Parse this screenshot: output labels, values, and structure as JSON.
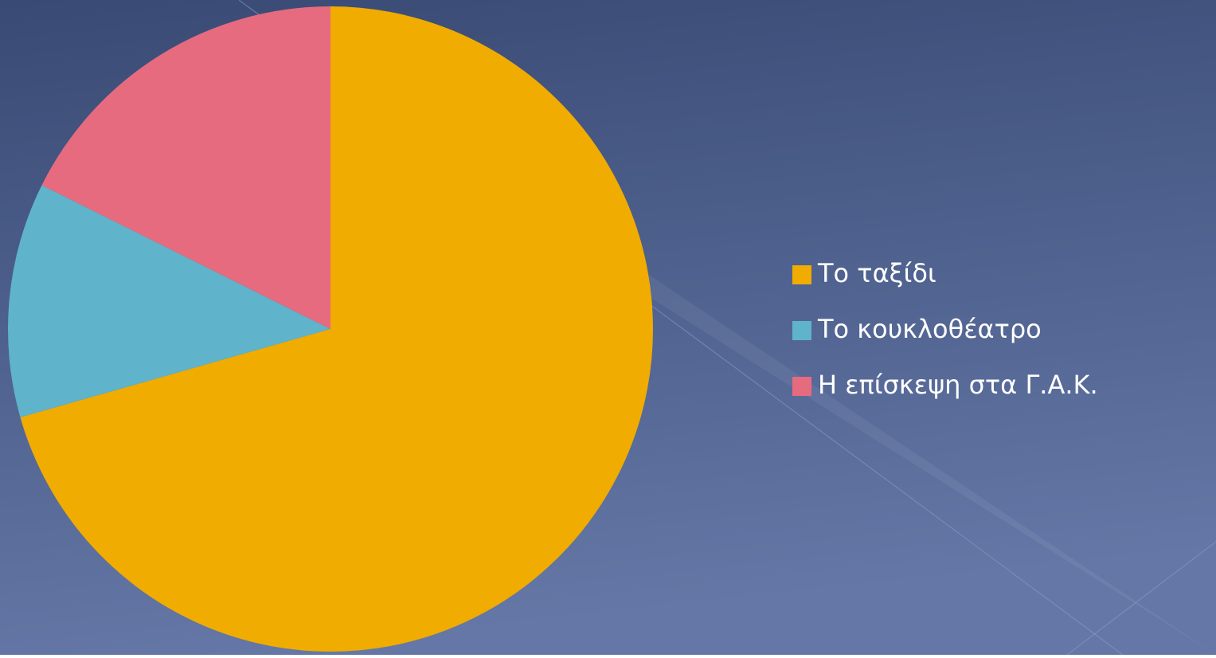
{
  "chart_data": {
    "type": "pie",
    "categories": [
      "Το ταξίδι",
      "Το κουκλοθέατρο",
      "Η επίσκεψη στα Γ.Α.Κ."
    ],
    "values": [
      12,
      2,
      3
    ],
    "colors": [
      "#f0ac00",
      "#5fb3cb",
      "#e76b7f"
    ],
    "legend": "right"
  }
}
